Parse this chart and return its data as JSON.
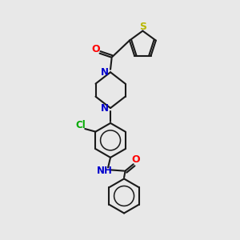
{
  "bg_color": "#e8e8e8",
  "bond_color": "#1a1a1a",
  "bond_width": 1.5,
  "S_color": "#b8b800",
  "O_color": "#ff0000",
  "N_color": "#0000cc",
  "Cl_color": "#00aa00",
  "font_size": 8.5,
  "fig_width": 3.0,
  "fig_height": 3.0,
  "dpi": 100,
  "xlim": [
    0,
    10
  ],
  "ylim": [
    0,
    10
  ]
}
